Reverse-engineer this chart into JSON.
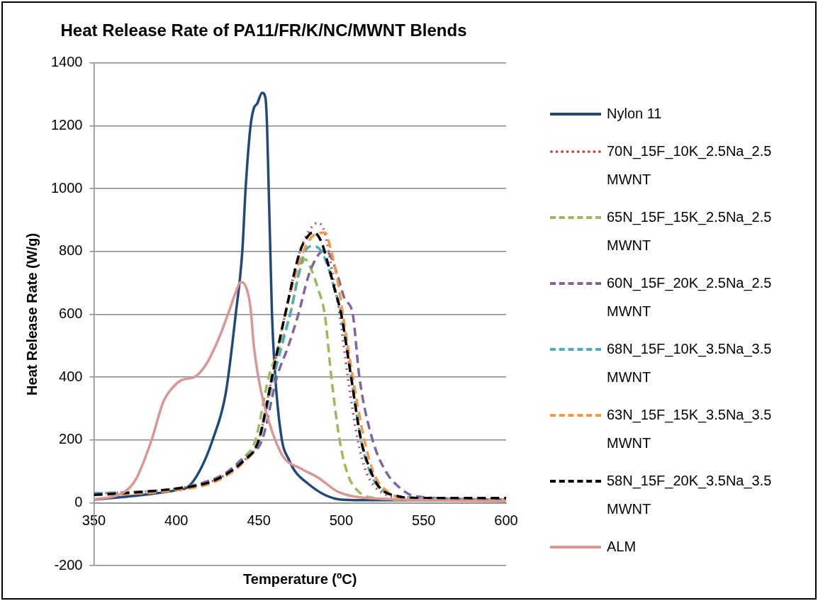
{
  "chart_data": {
    "type": "line",
    "title": "Heat Release Rate of PA11/FR/K/NC/MWNT Blends",
    "xlabel": "Temperature (ºC)",
    "ylabel": "Heat Release Rate (W/g)",
    "xlim": [
      350,
      600
    ],
    "xticks": [
      350,
      400,
      450,
      500,
      550,
      600
    ],
    "ylim": [
      -200,
      1400
    ],
    "yticks": [
      -200,
      0,
      200,
      400,
      600,
      800,
      1000,
      1200,
      1400
    ],
    "grid": "y",
    "legend": "right",
    "marker": "none",
    "series": [
      {
        "name": "Nylon 11",
        "color": "#1f497d",
        "line_style": "solid",
        "x": [
          350,
          380,
          400,
          407,
          414,
          422,
          430,
          436,
          440,
          442,
          445,
          447,
          449,
          452,
          454,
          455,
          456,
          457,
          458,
          460,
          464,
          468,
          472,
          480,
          490,
          500,
          520,
          600
        ],
        "values": [
          10,
          25,
          40,
          50,
          100,
          200,
          350,
          600,
          800,
          1000,
          1200,
          1256,
          1270,
          1305,
          1290,
          1200,
          1000,
          800,
          600,
          400,
          200,
          140,
          100,
          60,
          25,
          10,
          8,
          8
        ]
      },
      {
        "name": "70N_15F_10K_2.5Na_2.5 MWNT",
        "color": "#c0504d",
        "line_style": "dotted",
        "x": [
          350,
          380,
          400,
          420,
          430,
          440,
          450,
          458,
          466,
          475,
          481,
          486,
          490,
          495,
          499,
          504,
          510,
          515,
          520,
          530,
          550,
          600
        ],
        "values": [
          30,
          35,
          45,
          65,
          90,
          130,
          200,
          400,
          600,
          800,
          870,
          891,
          860,
          720,
          600,
          400,
          200,
          100,
          54,
          20,
          10,
          8
        ]
      },
      {
        "name": "65N_15F_15K_2.5Na_2.5 MWNT",
        "color": "#9bbb59",
        "line_style": "dashed",
        "x": [
          350,
          380,
          400,
          420,
          430,
          440,
          448,
          456,
          463,
          469,
          474,
          478,
          482,
          486,
          490,
          494,
          499,
          504,
          510,
          520,
          550,
          600
        ],
        "values": [
          25,
          32,
          45,
          65,
          90,
          140,
          200,
          400,
          500,
          600,
          720,
          775,
          740,
          680,
          600,
          400,
          200,
          90,
          38,
          15,
          8,
          8
        ]
      },
      {
        "name": "60N_15F_20K_2.5Na_2.5 MWNT",
        "color": "#8064a2",
        "line_style": "dashed",
        "x": [
          350,
          380,
          400,
          420,
          430,
          440,
          452,
          461,
          468,
          474,
          480,
          485,
          489,
          493,
          498,
          502,
          507,
          511,
          519,
          527,
          535,
          545,
          600
        ],
        "values": [
          30,
          35,
          45,
          70,
          95,
          140,
          200,
          400,
          500,
          600,
          720,
          780,
          801,
          790,
          720,
          650,
          600,
          400,
          200,
          100,
          50,
          20,
          10
        ]
      },
      {
        "name": "68N_15F_10K_3.5Na_3.5 MWNT",
        "color": "#4bacc6",
        "line_style": "dashed",
        "x": [
          350,
          380,
          400,
          420,
          430,
          440,
          450,
          459,
          469,
          478,
          483,
          488,
          492,
          496,
          500,
          506,
          512,
          518,
          525,
          535,
          600
        ],
        "values": [
          30,
          35,
          45,
          65,
          90,
          130,
          200,
          400,
          600,
          800,
          817,
          800,
          750,
          680,
          600,
          400,
          200,
          90,
          40,
          20,
          10
        ]
      },
      {
        "name": "63N_15F_15K_3.5Na_3.5 MWNT",
        "color": "#f79646",
        "line_style": "dashed",
        "x": [
          350,
          380,
          400,
          420,
          430,
          440,
          450,
          458,
          466,
          477,
          483,
          490,
          494,
          498,
          501,
          507,
          514,
          520,
          527,
          537,
          600
        ],
        "values": [
          25,
          30,
          40,
          60,
          85,
          125,
          200,
          400,
          600,
          800,
          850,
          860,
          800,
          700,
          600,
          400,
          200,
          90,
          40,
          15,
          8
        ]
      },
      {
        "name": "58N_15F_20K_3.5Na_3.5 MWNT",
        "color": "#000000",
        "line_style": "dashed",
        "x": [
          350,
          380,
          400,
          420,
          430,
          440,
          450,
          458,
          466,
          475,
          480,
          483,
          488,
          492,
          496,
          500,
          506,
          512,
          518,
          523,
          535,
          545,
          600
        ],
        "values": [
          25,
          35,
          45,
          65,
          90,
          130,
          200,
          400,
          600,
          800,
          850,
          861,
          830,
          760,
          680,
          600,
          400,
          200,
          100,
          50,
          20,
          15,
          15
        ]
      },
      {
        "name": "ALM",
        "color": "#d99694",
        "line_style": "solid",
        "x": [
          350,
          365,
          372,
          376,
          385,
          392,
          398,
          404,
          411,
          418,
          425,
          432,
          436,
          439,
          442,
          445,
          447,
          451,
          458,
          465,
          475,
          486,
          498,
          516,
          600
        ],
        "values": [
          10,
          25,
          50,
          80,
          200,
          320,
          368,
          392,
          400,
          440,
          514,
          610,
          670,
          702,
          690,
          620,
          500,
          364,
          228,
          145,
          110,
          80,
          35,
          15,
          5
        ]
      }
    ]
  }
}
